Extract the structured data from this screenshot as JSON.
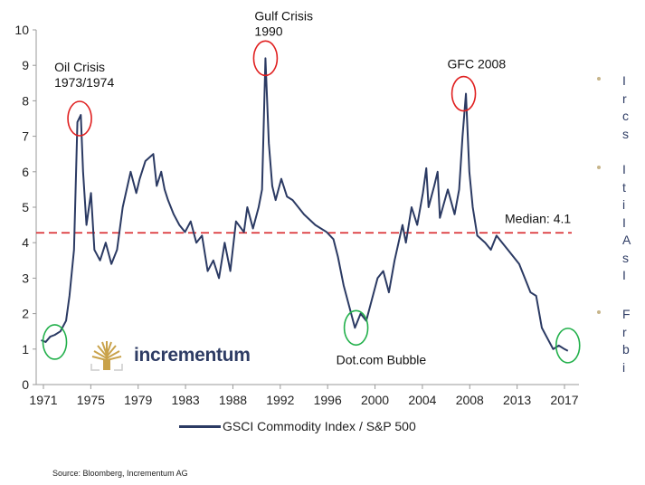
{
  "chart_data": {
    "type": "line",
    "title": "",
    "xlabel": "",
    "ylabel": "",
    "xlim": [
      1970.5,
      2018.2
    ],
    "ylim": [
      0,
      10
    ],
    "yticks": [
      "0",
      "1",
      "2",
      "3",
      "4",
      "5",
      "6",
      "7",
      "8",
      "9",
      "10"
    ],
    "xticks": [
      "1971",
      "1975",
      "1979",
      "1983",
      "1988",
      "1992",
      "1996",
      "2000",
      "2004",
      "2008",
      "2013",
      "2017"
    ],
    "grid": false,
    "legend_position": "bottom",
    "series": [
      {
        "name": "GSCI Commodity Index / S&P 500",
        "color": "#2b3a63",
        "x": [
          1970.8,
          1971.2,
          1971.6,
          1972,
          1972.5,
          1973,
          1973.3,
          1973.7,
          1974.0,
          1974.3,
          1974.5,
          1974.8,
          1975.2,
          1975.5,
          1976,
          1976.5,
          1977,
          1977.5,
          1978,
          1978.7,
          1979.2,
          1979.5,
          1980,
          1980.7,
          1981,
          1981.4,
          1981.7,
          1982,
          1982.5,
          1983,
          1983.5,
          1984,
          1984.5,
          1985,
          1985.5,
          1986,
          1986.5,
          1987,
          1987.5,
          1988,
          1988.7,
          1989,
          1989.5,
          1990,
          1990.3,
          1990.6,
          1990.9,
          1991.2,
          1991.5,
          1992,
          1992.5,
          1993,
          1994,
          1995,
          1996,
          1996.6,
          1997,
          1997.5,
          1998,
          1998.5,
          1999,
          1999.5,
          2000,
          2000.5,
          2001,
          2001.5,
          2002,
          2002.7,
          2003,
          2003.5,
          2004,
          2004.5,
          2004.8,
          2005,
          2005.5,
          2005.8,
          2006,
          2006.7,
          2007.3,
          2007.7,
          2008.0,
          2008.3,
          2008.6,
          2008.9,
          2009.3,
          2010,
          2010.5,
          2011,
          2011.5,
          2012,
          2013,
          2013.5,
          2014,
          2014.5,
          2015,
          2015.5,
          2016,
          2016.5,
          2017,
          2017.3
        ],
        "values": [
          1.25,
          1.2,
          1.35,
          1.4,
          1.5,
          1.8,
          2.5,
          3.8,
          7.4,
          7.6,
          6.0,
          4.5,
          5.4,
          3.8,
          3.5,
          4.0,
          3.4,
          3.8,
          5.0,
          6.0,
          5.4,
          5.8,
          6.3,
          6.5,
          5.6,
          6.0,
          5.5,
          5.2,
          4.8,
          4.5,
          4.3,
          4.6,
          4.0,
          4.2,
          3.2,
          3.5,
          3.0,
          4.0,
          3.2,
          4.6,
          4.3,
          5.0,
          4.4,
          5.0,
          5.5,
          9.2,
          6.8,
          5.6,
          5.2,
          5.8,
          5.3,
          5.2,
          4.8,
          4.5,
          4.3,
          4.1,
          3.6,
          2.8,
          2.2,
          1.6,
          2.0,
          1.8,
          2.4,
          3.0,
          3.2,
          2.6,
          3.5,
          4.5,
          4.0,
          5.0,
          4.5,
          5.4,
          6.1,
          5.0,
          5.6,
          6.0,
          4.7,
          5.5,
          4.8,
          5.5,
          7.0,
          8.2,
          6.0,
          5.0,
          4.2,
          4.0,
          3.8,
          4.2,
          4.0,
          3.8,
          3.4,
          3.0,
          2.6,
          2.5,
          1.6,
          1.3,
          1.0,
          1.1,
          1.0,
          0.95
        ]
      }
    ],
    "reference_lines": [
      {
        "label": "Median: 4.1",
        "value": 4.1,
        "color": "#d9262b",
        "style": "dashed"
      }
    ],
    "annotations": [
      {
        "text_lines": [
          "Oil Crisis",
          "1973/1974"
        ],
        "marker": "red-circle",
        "x": 1974.2,
        "y": 7.5
      },
      {
        "text_lines": [
          "Gulf Crisis",
          "1990"
        ],
        "marker": "red-circle",
        "x": 1990.6,
        "y": 9.2
      },
      {
        "text_lines": [
          "GFC 2008"
        ],
        "marker": "red-circle",
        "x": 2008.1,
        "y": 8.2
      },
      {
        "text_lines": [],
        "marker": "green-circle",
        "x": 1972.0,
        "y": 1.2
      },
      {
        "text_lines": [
          "Dot.com Bubble"
        ],
        "marker": "green-circle",
        "x": 1998.6,
        "y": 1.6
      },
      {
        "text_lines": [],
        "marker": "green-circle",
        "x": 2017.3,
        "y": 1.1
      }
    ],
    "marker_colors": {
      "red-circle": "#e02020",
      "green-circle": "#22b04b"
    }
  },
  "logo": {
    "text": "incrementum",
    "icon": "tree-logo-icon",
    "color": "#c9a24a"
  },
  "source": "Source: Bloomberg, Incrementum AG",
  "side_bullets": [
    {
      "lines": [
        "I",
        "r",
        "c",
        "s"
      ]
    },
    {
      "lines": [
        "I",
        "t",
        "i",
        "I",
        "A",
        "s",
        "I"
      ]
    },
    {
      "lines": [
        "F",
        "r",
        "b",
        "i"
      ]
    }
  ]
}
